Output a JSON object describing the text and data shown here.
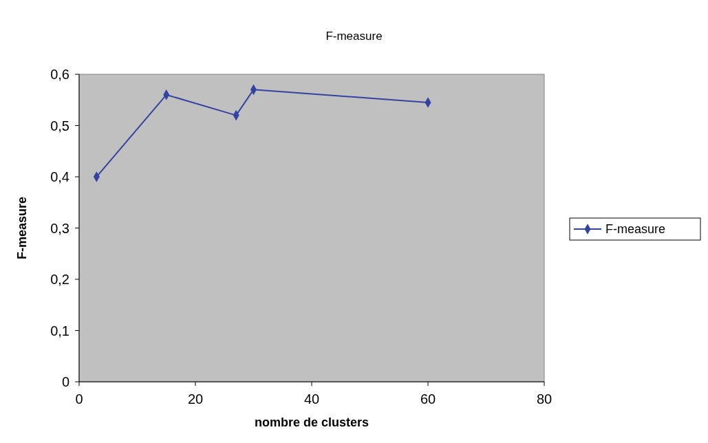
{
  "chart_data": {
    "type": "line",
    "title": "F-measure",
    "xlabel": "nombre de clusters",
    "ylabel": "F-measure",
    "x": [
      3,
      15,
      27,
      30,
      60
    ],
    "series": [
      {
        "name": "F-measure",
        "color": "#3344a0",
        "values": [
          0.4,
          0.56,
          0.52,
          0.57,
          0.545
        ]
      }
    ],
    "xlim": [
      0,
      80
    ],
    "xticks": [
      0,
      20,
      40,
      60,
      80
    ],
    "ylim": [
      0,
      0.6
    ],
    "yticks": [
      {
        "value": 0,
        "label": "0"
      },
      {
        "value": 0.1,
        "label": "0,1"
      },
      {
        "value": 0.2,
        "label": "0,2"
      },
      {
        "value": 0.3,
        "label": "0,3"
      },
      {
        "value": 0.4,
        "label": "0,4"
      },
      {
        "value": 0.5,
        "label": "0,5"
      },
      {
        "value": 0.6,
        "label": "0,6"
      }
    ],
    "grid": false,
    "legend": "right",
    "marker": "diamond",
    "line_style": "solid"
  }
}
